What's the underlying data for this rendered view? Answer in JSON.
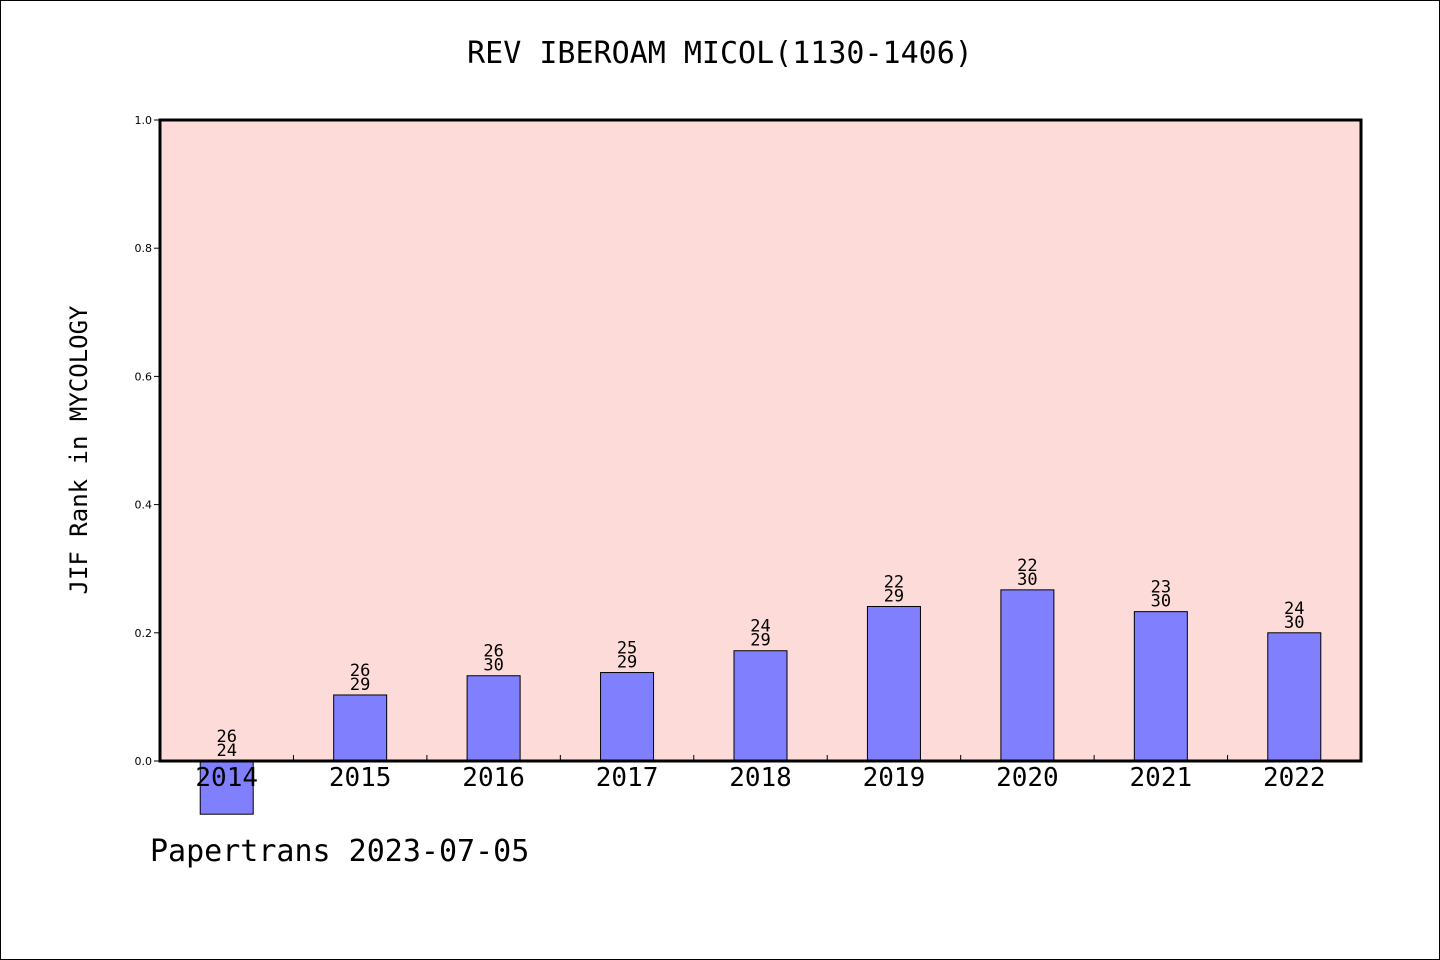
{
  "chart_data": {
    "type": "bar",
    "title": "REV IBEROAM MICOL(1130-1406)",
    "ylabel": "JIF Rank in MYCOLOGY",
    "categories": [
      "2014",
      "2015",
      "2016",
      "2017",
      "2018",
      "2019",
      "2020",
      "2021",
      "2022"
    ],
    "values": [
      -0.083,
      0.103,
      0.133,
      0.138,
      0.172,
      0.241,
      0.267,
      0.233,
      0.2
    ],
    "bar_labels": [
      [
        "26",
        "24"
      ],
      [
        "26",
        "29"
      ],
      [
        "26",
        "30"
      ],
      [
        "25",
        "29"
      ],
      [
        "24",
        "29"
      ],
      [
        "22",
        "29"
      ],
      [
        "22",
        "30"
      ],
      [
        "23",
        "30"
      ],
      [
        "24",
        "30"
      ]
    ],
    "ylim": [
      0.0,
      1.0
    ],
    "yticks": [
      "0.0",
      "0.2",
      "0.4",
      "0.6",
      "0.8",
      "1.0"
    ],
    "grid": false,
    "colors": {
      "bar": "#8080ff",
      "plot_background": "#fddbd8"
    }
  },
  "footer": "Papertrans 2023-07-05"
}
